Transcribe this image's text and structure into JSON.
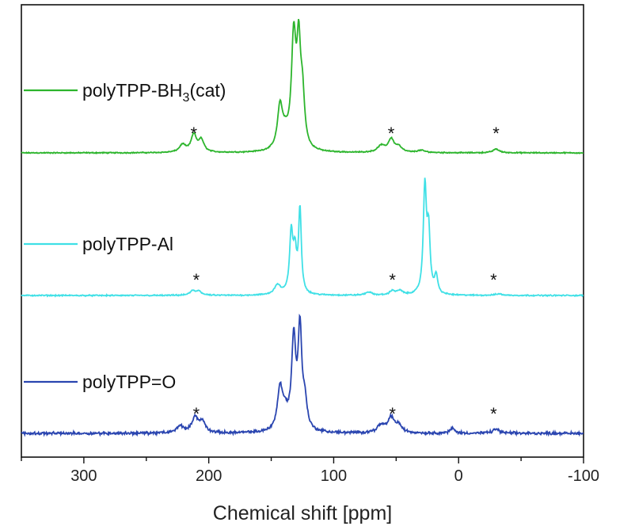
{
  "chart_data": {
    "type": "line",
    "title": "",
    "xlabel": "Chemical shift [ppm]",
    "ylabel": "",
    "xlim": [
      350,
      -100
    ],
    "x_reversed": true,
    "x_ticks": [
      300,
      200,
      100,
      0,
      -100
    ],
    "x_tick_labels": [
      "300",
      "200",
      "100",
      "0",
      "-100"
    ],
    "grid": false,
    "legend": "inline-left",
    "series": [
      {
        "name": "polyTPP-BH3(cat)",
        "name_main": "polyTPP-BH",
        "name_sub": "3",
        "name_tail": "(cat)",
        "color": "#2db52d",
        "offset": 2,
        "noise": 0.006,
        "peaks": [
          {
            "ppm": 221,
            "h": 0.07,
            "w": 3.0
          },
          {
            "ppm": 212,
            "h": 0.16,
            "w": 2.6
          },
          {
            "ppm": 206,
            "h": 0.11,
            "w": 2.6
          },
          {
            "ppm": 143,
            "h": 0.38,
            "w": 2.4
          },
          {
            "ppm": 139,
            "h": 0.12,
            "w": 3.5
          },
          {
            "ppm": 132,
            "h": 1.0,
            "w": 2.2
          },
          {
            "ppm": 128,
            "h": 0.85,
            "w": 1.8
          },
          {
            "ppm": 125,
            "h": 0.45,
            "w": 2.0
          },
          {
            "ppm": 62,
            "h": 0.06,
            "w": 3.5
          },
          {
            "ppm": 54,
            "h": 0.12,
            "w": 2.8
          },
          {
            "ppm": 48,
            "h": 0.05,
            "w": 3.0
          },
          {
            "ppm": 30,
            "h": 0.02,
            "w": 4.0
          },
          {
            "ppm": -30,
            "h": 0.035,
            "w": 3.0
          }
        ],
        "stars": [
          212,
          54,
          -30
        ]
      },
      {
        "name": "polyTPP-Al",
        "color": "#3fe0e6",
        "offset": 1,
        "noise": 0.007,
        "peaks": [
          {
            "ppm": 213,
            "h": 0.04,
            "w": 2.5
          },
          {
            "ppm": 208,
            "h": 0.04,
            "w": 2.5
          },
          {
            "ppm": 145,
            "h": 0.09,
            "w": 3.0
          },
          {
            "ppm": 134,
            "h": 0.55,
            "w": 1.6
          },
          {
            "ppm": 131,
            "h": 0.35,
            "w": 1.6
          },
          {
            "ppm": 127,
            "h": 0.78,
            "w": 1.3
          },
          {
            "ppm": 72,
            "h": 0.03,
            "w": 3.0
          },
          {
            "ppm": 53,
            "h": 0.04,
            "w": 2.5
          },
          {
            "ppm": 47,
            "h": 0.04,
            "w": 2.5
          },
          {
            "ppm": 27,
            "h": 1.0,
            "w": 1.5
          },
          {
            "ppm": 24,
            "h": 0.55,
            "w": 1.4
          },
          {
            "ppm": 18,
            "h": 0.17,
            "w": 1.5
          },
          {
            "ppm": -32,
            "h": 0.015,
            "w": 3.0
          }
        ],
        "stars": [
          210,
          53,
          -28
        ]
      },
      {
        "name": "polyTPP=O",
        "color": "#2a45b0",
        "offset": 0,
        "noise": 0.016,
        "peaks": [
          {
            "ppm": 223,
            "h": 0.07,
            "w": 3.0
          },
          {
            "ppm": 211,
            "h": 0.15,
            "w": 3.0
          },
          {
            "ppm": 205,
            "h": 0.1,
            "w": 2.8
          },
          {
            "ppm": 143,
            "h": 0.38,
            "w": 2.5
          },
          {
            "ppm": 139,
            "h": 0.15,
            "w": 3.5
          },
          {
            "ppm": 132,
            "h": 0.85,
            "w": 2.0
          },
          {
            "ppm": 127,
            "h": 0.95,
            "w": 1.8
          },
          {
            "ppm": 123,
            "h": 0.25,
            "w": 2.0
          },
          {
            "ppm": 62,
            "h": 0.07,
            "w": 4.0
          },
          {
            "ppm": 54,
            "h": 0.14,
            "w": 3.0
          },
          {
            "ppm": 48,
            "h": 0.07,
            "w": 3.0
          },
          {
            "ppm": 5,
            "h": 0.05,
            "w": 2.0
          },
          {
            "ppm": -30,
            "h": 0.04,
            "w": 3.0
          }
        ],
        "stars": [
          210,
          53,
          -28
        ]
      }
    ]
  }
}
